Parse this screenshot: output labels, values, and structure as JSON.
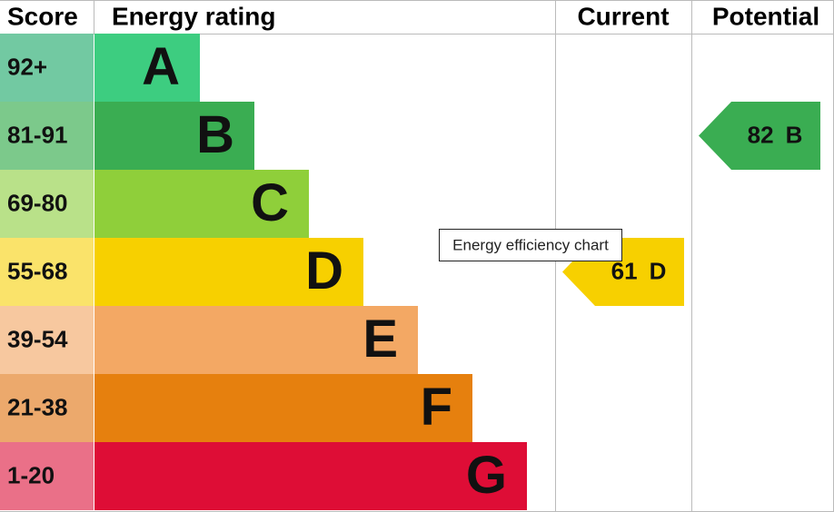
{
  "header": {
    "score": "Score",
    "rating": "Energy rating",
    "current": "Current",
    "potential": "Potential"
  },
  "bands": [
    {
      "score": "92+",
      "letter": "A",
      "color": "#3dcd80",
      "score_color": "#72c9a2"
    },
    {
      "score": "81-91",
      "letter": "B",
      "color": "#3aad52",
      "score_color": "#7cc98b"
    },
    {
      "score": "69-80",
      "letter": "C",
      "color": "#8fcf3a",
      "score_color": "#b9e189"
    },
    {
      "score": "55-68",
      "letter": "D",
      "color": "#f7d000",
      "score_color": "#fae36a"
    },
    {
      "score": "39-54",
      "letter": "E",
      "color": "#f3a864",
      "score_color": "#f7c89f"
    },
    {
      "score": "21-38",
      "letter": "F",
      "color": "#e6800e",
      "score_color": "#eca96c"
    },
    {
      "score": "1-20",
      "letter": "G",
      "color": "#de0d36",
      "score_color": "#ea7088"
    }
  ],
  "current": {
    "value": 61,
    "letter": "D"
  },
  "potential": {
    "value": 82,
    "letter": "B"
  },
  "tooltip": "Energy efficiency chart"
}
